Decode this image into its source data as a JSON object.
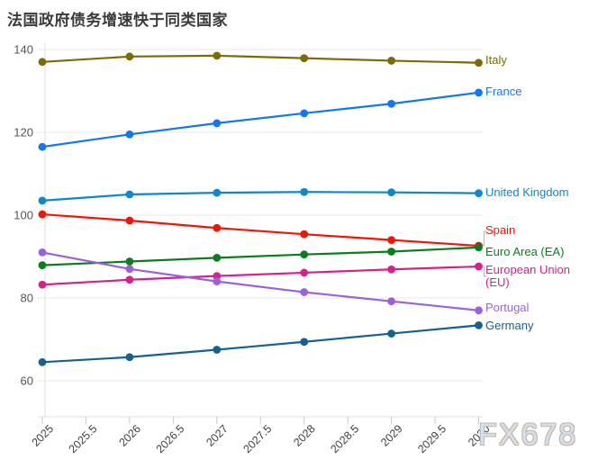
{
  "title": "法国政府债务增速快于同类国家",
  "watermark": "FX678",
  "colors": {
    "background": "#ffffff",
    "title_text": "#3b3b3b",
    "axis_text": "#3f3f3f",
    "y_axis_text": "#555555",
    "gridline": "#e7e7e7",
    "axis_line": "#e0e0e0",
    "tick_mark": "#c9c9c9",
    "label_connector": "#b8b8b8",
    "watermark_fill": "#d3e0f0",
    "watermark_outline": "#c8b5a2"
  },
  "chart_data": {
    "type": "line",
    "title": "法国政府债务增速快于同类国家",
    "xlabel": "",
    "ylabel": "",
    "x": [
      2025,
      2026,
      2027,
      2028,
      2029,
      2030
    ],
    "x_tick_labels": [
      "2025",
      "2025.5",
      "2026",
      "2026.5",
      "2027",
      "2027.5",
      "2028",
      "2028.5",
      "2029",
      "2029.5",
      "2030"
    ],
    "y_ticks": [
      60,
      80,
      100,
      120,
      140
    ],
    "xlim": [
      2025,
      2030
    ],
    "ylim": [
      60,
      140
    ],
    "grid": "horizontal",
    "legend_position": "right-edge-labels",
    "series": [
      {
        "name": "Italy",
        "color": "#7c6a08",
        "values": [
          137.0,
          138.3,
          138.5,
          137.9,
          137.3,
          136.8
        ]
      },
      {
        "name": "France",
        "color": "#1577f0",
        "values": [
          116.5,
          119.5,
          122.2,
          124.6,
          126.9,
          129.6
        ]
      },
      {
        "name": "United Kingdom",
        "color": "#0f87c8",
        "values": [
          103.5,
          105.0,
          105.4,
          105.6,
          105.5,
          105.3
        ]
      },
      {
        "name": "Spain",
        "color": "#f01607",
        "values": [
          100.2,
          98.7,
          96.9,
          95.4,
          94.0,
          92.6
        ]
      },
      {
        "name": "Euro Area (EA)",
        "color": "#0b7c1f",
        "values": [
          87.9,
          88.8,
          89.7,
          90.5,
          91.2,
          92.2
        ]
      },
      {
        "name": "European Union (EU)",
        "color": "#d5218c",
        "values": [
          83.2,
          84.4,
          85.3,
          86.1,
          86.9,
          87.6
        ]
      },
      {
        "name": "Portugal",
        "color": "#9b61d6",
        "values": [
          91.0,
          87.0,
          84.0,
          81.4,
          79.2,
          77.0
        ]
      },
      {
        "name": "Germany",
        "color": "#17608f",
        "values": [
          64.5,
          65.7,
          67.5,
          69.4,
          71.4,
          73.4
        ]
      }
    ]
  }
}
